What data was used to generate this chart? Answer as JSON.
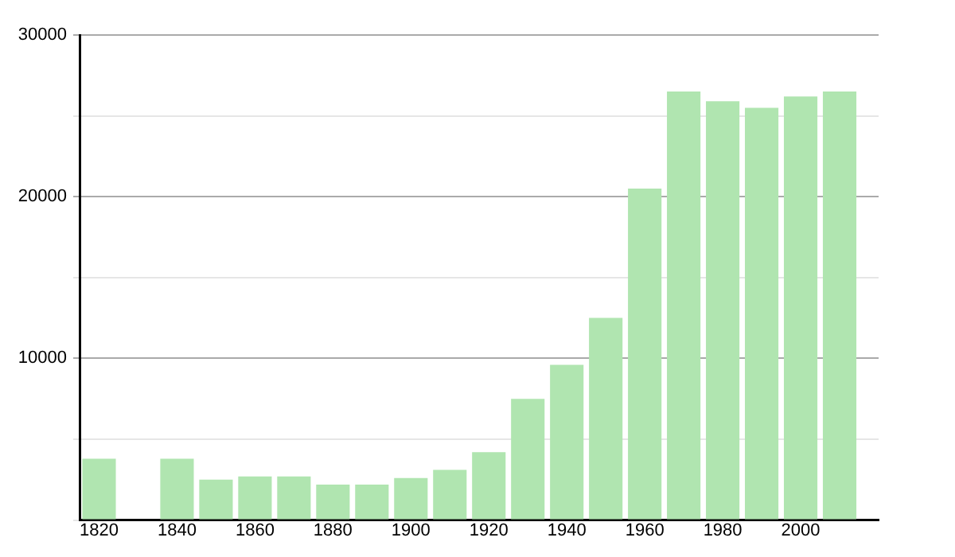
{
  "chart_data": {
    "type": "bar",
    "x": [
      1820,
      1840,
      1850,
      1860,
      1870,
      1880,
      1890,
      1900,
      1910,
      1920,
      1930,
      1940,
      1950,
      1960,
      1970,
      1980,
      1990,
      2000,
      2010
    ],
    "values": [
      3800,
      3800,
      2500,
      2700,
      2700,
      2200,
      2200,
      2600,
      3100,
      4200,
      7500,
      9600,
      12500,
      20500,
      26500,
      25900,
      25500,
      26200,
      26500
    ],
    "color": "#b0e5b0",
    "xlim": [
      1815,
      2020
    ],
    "xticks": [
      1820,
      1840,
      1860,
      1880,
      1900,
      1920,
      1940,
      1960,
      1980,
      2000
    ],
    "ylim": [
      0,
      30000
    ],
    "yticks": [
      {
        "value": 0,
        "label": null
      },
      {
        "value": 5000,
        "label": null
      },
      10000,
      {
        "value": 15000,
        "label": null
      },
      20000,
      {
        "value": 25000,
        "label": null
      },
      30000
    ],
    "grid": "y",
    "legend": false
  }
}
